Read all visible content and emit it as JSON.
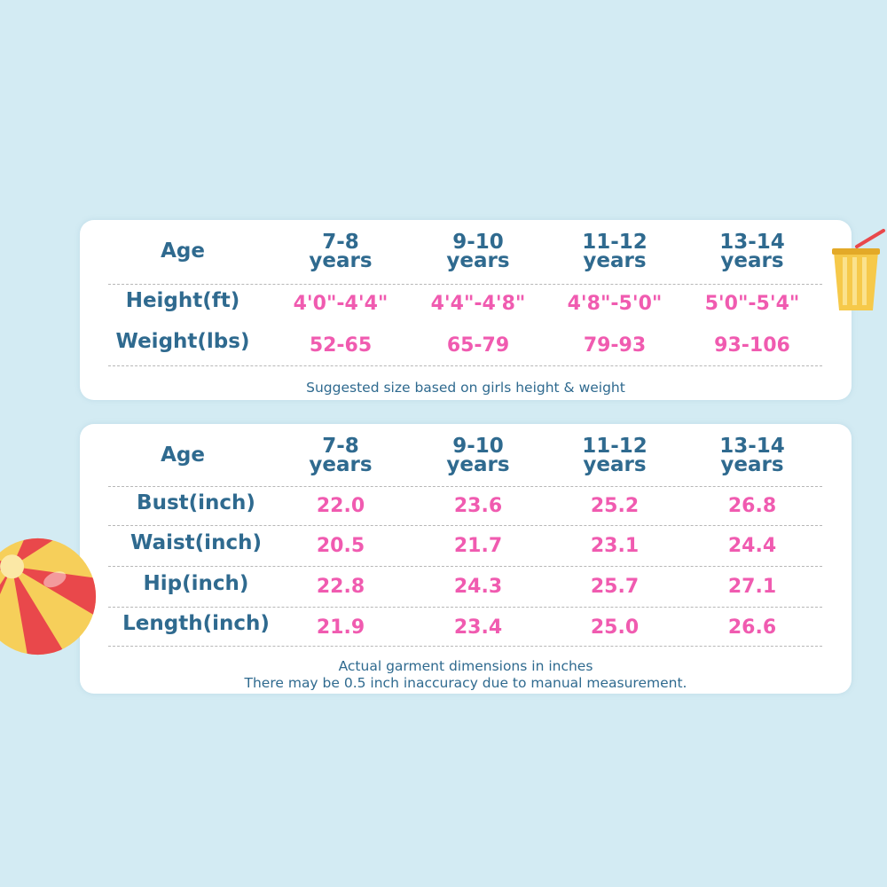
{
  "table1": {
    "age_label": "Age",
    "columns": [
      {
        "range": "7-8",
        "unit": "years"
      },
      {
        "range": "9-10",
        "unit": "years"
      },
      {
        "range": "11-12",
        "unit": "years"
      },
      {
        "range": "13-14",
        "unit": "years"
      }
    ],
    "rows": [
      {
        "label": "Height(ft)",
        "values": [
          "4'0\"-4'4\"",
          "4'4\"-4'8\"",
          "4'8\"-5'0\"",
          "5'0\"-5'4\""
        ]
      },
      {
        "label": "Weight(lbs)",
        "values": [
          "52-65",
          "65-79",
          "79-93",
          "93-106"
        ]
      }
    ],
    "note": "Suggested size based on girls height & weight"
  },
  "table2": {
    "age_label": "Age",
    "columns": [
      {
        "range": "7-8",
        "unit": "years"
      },
      {
        "range": "9-10",
        "unit": "years"
      },
      {
        "range": "11-12",
        "unit": "years"
      },
      {
        "range": "13-14",
        "unit": "years"
      }
    ],
    "rows": [
      {
        "label": "Bust(inch)",
        "values": [
          "22.0",
          "23.6",
          "25.2",
          "26.8"
        ]
      },
      {
        "label": "Waist(inch)",
        "values": [
          "20.5",
          "21.7",
          "23.1",
          "24.4"
        ]
      },
      {
        "label": "Hip(inch)",
        "values": [
          "22.8",
          "24.3",
          "25.7",
          "27.1"
        ]
      },
      {
        "label": "Length(inch)",
        "values": [
          "21.9",
          "23.4",
          "25.0",
          "26.6"
        ]
      }
    ],
    "note_line1": "Actual garment dimensions in inches",
    "note_line2": "There may be 0.5 inch inaccuracy due to manual measurement."
  },
  "colors": {
    "background": "#d3ebf3",
    "label": "#2f6a8f",
    "value": "#f05bb0"
  },
  "decorations": [
    "beach-ball-icon",
    "drink-cup-icon"
  ]
}
